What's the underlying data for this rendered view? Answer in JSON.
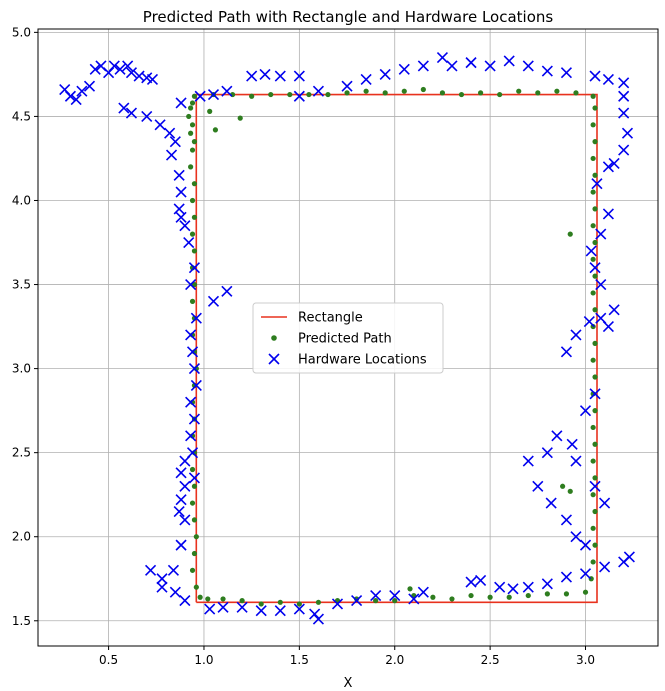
{
  "chart_data": {
    "type": "scatter",
    "title": "Predicted Path with Rectangle and Hardware Locations",
    "xlabel": "X",
    "ylabel": "",
    "xlim": [
      0.13,
      3.38
    ],
    "ylim": [
      1.35,
      5.02
    ],
    "xticks": [
      "0.5",
      "1.0",
      "1.5",
      "2.0",
      "2.5",
      "3.0"
    ],
    "yticks": [
      "1.5",
      "2.0",
      "2.5",
      "3.0",
      "3.5",
      "4.0",
      "4.5",
      "5.0"
    ],
    "grid": true,
    "legend_position": "center",
    "series": [
      {
        "name": "Rectangle",
        "kind": "line",
        "color": "#e8321e",
        "points": [
          [
            0.96,
            1.61
          ],
          [
            3.06,
            1.61
          ],
          [
            3.06,
            4.63
          ],
          [
            0.96,
            4.63
          ],
          [
            0.96,
            1.61
          ]
        ]
      },
      {
        "name": "Predicted Path",
        "kind": "dot",
        "color": "#2e7d1f",
        "points": [
          [
            0.95,
            4.62
          ],
          [
            0.94,
            4.58
          ],
          [
            0.93,
            4.55
          ],
          [
            0.92,
            4.5
          ],
          [
            0.94,
            4.45
          ],
          [
            0.93,
            4.4
          ],
          [
            0.95,
            4.35
          ],
          [
            0.94,
            4.3
          ],
          [
            0.93,
            4.2
          ],
          [
            0.95,
            4.1
          ],
          [
            0.94,
            4.0
          ],
          [
            0.95,
            3.9
          ],
          [
            0.94,
            3.8
          ],
          [
            0.95,
            3.7
          ],
          [
            0.94,
            3.6
          ],
          [
            0.95,
            3.5
          ],
          [
            0.94,
            3.4
          ],
          [
            0.95,
            3.3
          ],
          [
            0.94,
            3.2
          ],
          [
            0.95,
            3.1
          ],
          [
            0.96,
            3.0
          ],
          [
            0.95,
            2.9
          ],
          [
            0.94,
            2.8
          ],
          [
            0.95,
            2.7
          ],
          [
            0.94,
            2.6
          ],
          [
            0.95,
            2.5
          ],
          [
            0.94,
            2.4
          ],
          [
            0.95,
            2.3
          ],
          [
            0.94,
            2.2
          ],
          [
            0.95,
            2.1
          ],
          [
            0.96,
            2.0
          ],
          [
            0.95,
            1.9
          ],
          [
            0.94,
            1.8
          ],
          [
            0.96,
            1.7
          ],
          [
            0.98,
            1.64
          ],
          [
            1.02,
            1.63
          ],
          [
            1.1,
            1.63
          ],
          [
            1.2,
            1.62
          ],
          [
            1.3,
            1.6
          ],
          [
            1.4,
            1.61
          ],
          [
            1.5,
            1.6
          ],
          [
            1.6,
            1.61
          ],
          [
            1.7,
            1.62
          ],
          [
            1.8,
            1.63
          ],
          [
            1.9,
            1.62
          ],
          [
            2.0,
            1.62
          ],
          [
            2.08,
            1.69
          ],
          [
            2.1,
            1.65
          ],
          [
            2.2,
            1.64
          ],
          [
            2.3,
            1.63
          ],
          [
            2.4,
            1.65
          ],
          [
            2.5,
            1.64
          ],
          [
            2.6,
            1.64
          ],
          [
            2.7,
            1.65
          ],
          [
            2.8,
            1.66
          ],
          [
            2.9,
            1.66
          ],
          [
            3.0,
            1.67
          ],
          [
            3.03,
            1.75
          ],
          [
            3.04,
            1.85
          ],
          [
            3.05,
            1.95
          ],
          [
            3.04,
            2.05
          ],
          [
            3.05,
            2.15
          ],
          [
            3.04,
            2.25
          ],
          [
            3.05,
            2.35
          ],
          [
            3.04,
            2.45
          ],
          [
            3.05,
            2.55
          ],
          [
            3.04,
            2.65
          ],
          [
            3.05,
            2.75
          ],
          [
            3.04,
            2.85
          ],
          [
            3.05,
            2.95
          ],
          [
            3.04,
            3.05
          ],
          [
            3.05,
            3.15
          ],
          [
            3.04,
            3.25
          ],
          [
            3.05,
            3.35
          ],
          [
            3.04,
            3.45
          ],
          [
            3.05,
            3.55
          ],
          [
            3.04,
            3.65
          ],
          [
            3.05,
            3.75
          ],
          [
            3.04,
            3.85
          ],
          [
            3.05,
            3.95
          ],
          [
            3.04,
            4.05
          ],
          [
            3.05,
            4.15
          ],
          [
            3.04,
            4.25
          ],
          [
            3.05,
            4.35
          ],
          [
            3.04,
            4.45
          ],
          [
            3.05,
            4.55
          ],
          [
            3.04,
            4.62
          ],
          [
            2.95,
            4.64
          ],
          [
            2.85,
            4.65
          ],
          [
            2.75,
            4.64
          ],
          [
            2.65,
            4.65
          ],
          [
            2.55,
            4.63
          ],
          [
            2.45,
            4.64
          ],
          [
            2.35,
            4.63
          ],
          [
            2.25,
            4.64
          ],
          [
            2.15,
            4.66
          ],
          [
            2.05,
            4.65
          ],
          [
            1.95,
            4.64
          ],
          [
            1.85,
            4.65
          ],
          [
            1.75,
            4.64
          ],
          [
            1.65,
            4.63
          ],
          [
            1.55,
            4.63
          ],
          [
            1.45,
            4.63
          ],
          [
            1.35,
            4.63
          ],
          [
            1.25,
            4.62
          ],
          [
            1.15,
            4.63
          ],
          [
            1.05,
            4.63
          ],
          [
            1.03,
            4.53
          ],
          [
            1.06,
            4.42
          ],
          [
            1.19,
            4.49
          ],
          [
            2.92,
            3.8
          ],
          [
            2.88,
            2.3
          ],
          [
            2.92,
            2.27
          ]
        ]
      },
      {
        "name": "Hardware Locations",
        "kind": "x",
        "color": "#0000ee",
        "points": [
          [
            0.27,
            4.66
          ],
          [
            0.3,
            4.62
          ],
          [
            0.33,
            4.6
          ],
          [
            0.36,
            4.65
          ],
          [
            0.4,
            4.68
          ],
          [
            0.43,
            4.78
          ],
          [
            0.46,
            4.8
          ],
          [
            0.5,
            4.76
          ],
          [
            0.53,
            4.8
          ],
          [
            0.56,
            4.78
          ],
          [
            0.6,
            4.8
          ],
          [
            0.62,
            4.76
          ],
          [
            0.66,
            4.74
          ],
          [
            0.7,
            4.73
          ],
          [
            0.73,
            4.72
          ],
          [
            0.58,
            4.55
          ],
          [
            0.62,
            4.52
          ],
          [
            0.7,
            4.5
          ],
          [
            0.77,
            4.45
          ],
          [
            0.82,
            4.4
          ],
          [
            0.85,
            4.35
          ],
          [
            0.83,
            4.27
          ],
          [
            0.87,
            4.15
          ],
          [
            0.88,
            4.05
          ],
          [
            0.87,
            3.95
          ],
          [
            0.88,
            3.9
          ],
          [
            0.9,
            3.85
          ],
          [
            0.92,
            3.75
          ],
          [
            0.95,
            3.6
          ],
          [
            0.93,
            3.5
          ],
          [
            0.96,
            3.3
          ],
          [
            0.93,
            3.2
          ],
          [
            0.94,
            3.1
          ],
          [
            0.95,
            3.0
          ],
          [
            0.96,
            2.9
          ],
          [
            0.93,
            2.8
          ],
          [
            0.95,
            2.7
          ],
          [
            0.93,
            2.6
          ],
          [
            0.94,
            2.5
          ],
          [
            0.9,
            2.45
          ],
          [
            0.88,
            2.38
          ],
          [
            0.9,
            2.3
          ],
          [
            0.88,
            2.22
          ],
          [
            0.87,
            2.15
          ],
          [
            0.9,
            2.1
          ],
          [
            0.88,
            1.95
          ],
          [
            0.84,
            1.8
          ],
          [
            0.78,
            1.75
          ],
          [
            0.72,
            1.8
          ],
          [
            0.78,
            1.7
          ],
          [
            0.85,
            1.67
          ],
          [
            0.9,
            1.62
          ],
          [
            1.03,
            1.57
          ],
          [
            1.1,
            1.58
          ],
          [
            1.2,
            1.58
          ],
          [
            1.3,
            1.56
          ],
          [
            1.4,
            1.56
          ],
          [
            1.5,
            1.57
          ],
          [
            1.58,
            1.54
          ],
          [
            1.6,
            1.51
          ],
          [
            1.7,
            1.6
          ],
          [
            1.8,
            1.62
          ],
          [
            1.9,
            1.65
          ],
          [
            2.0,
            1.65
          ],
          [
            2.1,
            1.63
          ],
          [
            2.15,
            1.67
          ],
          [
            2.4,
            1.73
          ],
          [
            2.45,
            1.74
          ],
          [
            2.55,
            1.7
          ],
          [
            2.62,
            1.69
          ],
          [
            2.7,
            1.7
          ],
          [
            2.8,
            1.72
          ],
          [
            2.9,
            1.76
          ],
          [
            3.0,
            1.78
          ],
          [
            3.1,
            1.82
          ],
          [
            3.2,
            1.85
          ],
          [
            3.23,
            1.88
          ],
          [
            3.1,
            2.2
          ],
          [
            3.05,
            2.3
          ],
          [
            2.95,
            2.45
          ],
          [
            2.85,
            2.6
          ],
          [
            2.8,
            2.5
          ],
          [
            2.7,
            2.45
          ],
          [
            2.75,
            2.3
          ],
          [
            2.82,
            2.2
          ],
          [
            2.9,
            2.1
          ],
          [
            2.95,
            2.0
          ],
          [
            3.0,
            1.95
          ],
          [
            2.93,
            2.55
          ],
          [
            3.0,
            2.75
          ],
          [
            3.05,
            2.85
          ],
          [
            2.9,
            3.1
          ],
          [
            2.95,
            3.2
          ],
          [
            3.02,
            3.28
          ],
          [
            3.08,
            3.3
          ],
          [
            3.12,
            3.25
          ],
          [
            3.15,
            3.35
          ],
          [
            3.08,
            3.5
          ],
          [
            3.05,
            3.6
          ],
          [
            3.03,
            3.7
          ],
          [
            3.08,
            3.8
          ],
          [
            3.12,
            3.92
          ],
          [
            3.06,
            4.1
          ],
          [
            3.12,
            4.2
          ],
          [
            3.15,
            4.22
          ],
          [
            3.2,
            4.3
          ],
          [
            3.22,
            4.4
          ],
          [
            3.2,
            4.52
          ],
          [
            3.2,
            4.62
          ],
          [
            3.2,
            4.7
          ],
          [
            3.12,
            4.72
          ],
          [
            3.05,
            4.74
          ],
          [
            2.9,
            4.76
          ],
          [
            2.8,
            4.77
          ],
          [
            2.7,
            4.8
          ],
          [
            2.6,
            4.83
          ],
          [
            2.5,
            4.8
          ],
          [
            2.4,
            4.82
          ],
          [
            2.3,
            4.8
          ],
          [
            2.25,
            4.85
          ],
          [
            2.15,
            4.8
          ],
          [
            2.05,
            4.78
          ],
          [
            1.95,
            4.75
          ],
          [
            1.85,
            4.72
          ],
          [
            1.75,
            4.68
          ],
          [
            1.6,
            4.65
          ],
          [
            1.5,
            4.62
          ],
          [
            1.5,
            4.74
          ],
          [
            1.4,
            4.74
          ],
          [
            1.32,
            4.75
          ],
          [
            1.25,
            4.74
          ],
          [
            1.12,
            4.65
          ],
          [
            1.05,
            4.63
          ],
          [
            0.98,
            4.62
          ],
          [
            0.88,
            4.58
          ],
          [
            1.05,
            3.4
          ],
          [
            1.12,
            3.46
          ],
          [
            0.95,
            2.35
          ]
        ]
      }
    ]
  }
}
